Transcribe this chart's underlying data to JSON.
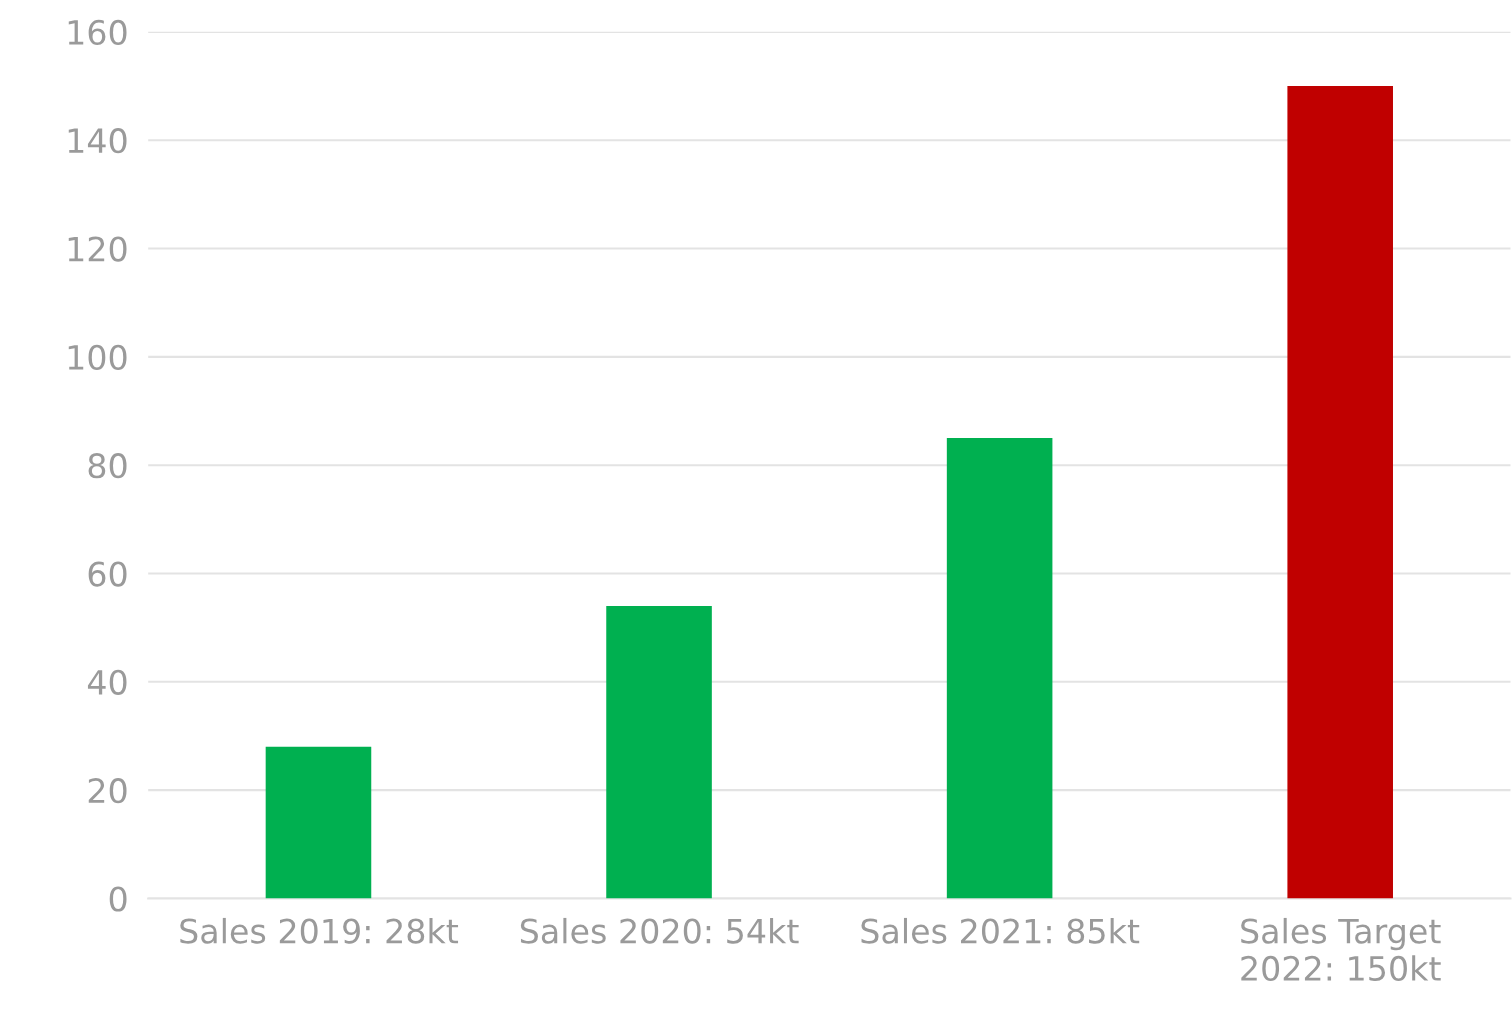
{
  "chart_data": {
    "type": "bar",
    "categories": [
      "Sales 2019: 28kt",
      "Sales 2020: 54kt",
      "Sales 2021: 85kt",
      "Sales Target\n2022: 150kt"
    ],
    "values": [
      28,
      54,
      85,
      150
    ],
    "colors": [
      "#00b050",
      "#00b050",
      "#00b050",
      "#c00000"
    ],
    "ylim": [
      0,
      160
    ],
    "yticks": [
      0,
      20,
      40,
      60,
      80,
      100,
      120,
      140,
      160
    ],
    "grid": "y",
    "legend": false
  }
}
